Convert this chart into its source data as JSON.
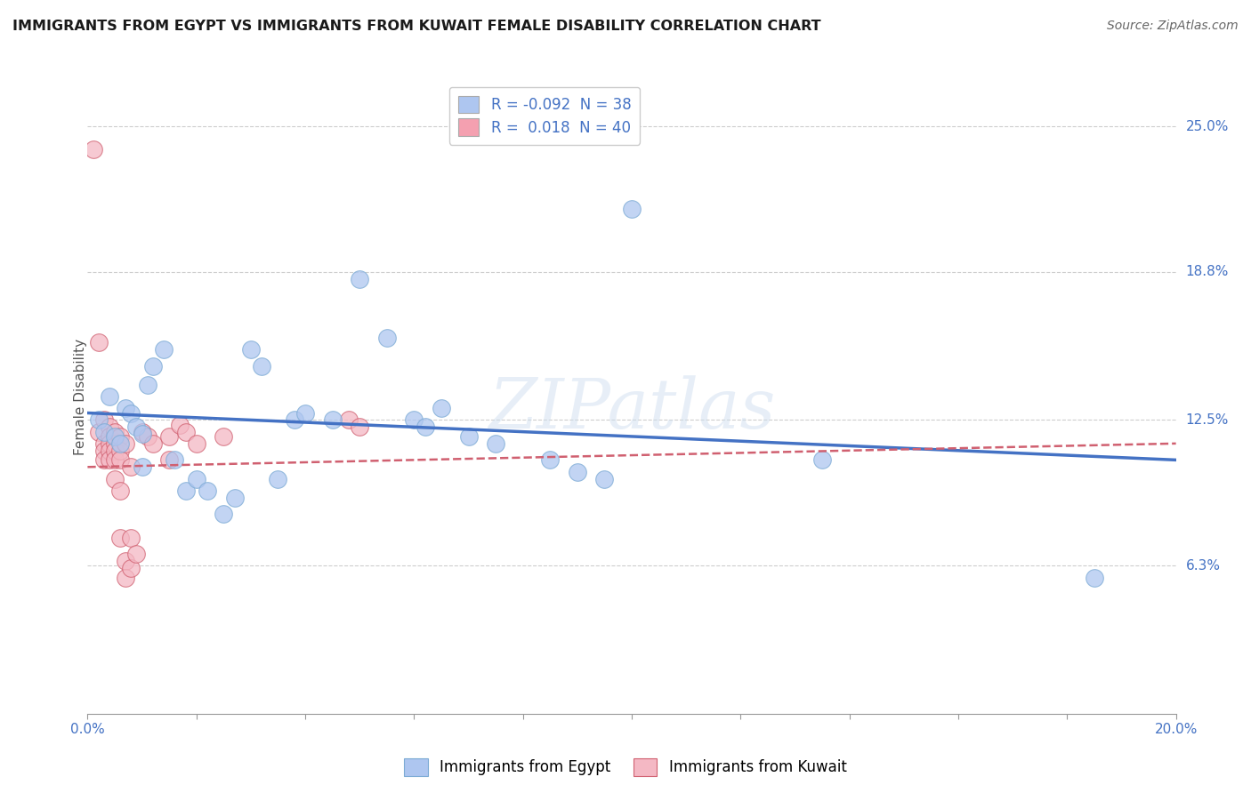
{
  "title": "IMMIGRANTS FROM EGYPT VS IMMIGRANTS FROM KUWAIT FEMALE DISABILITY CORRELATION CHART",
  "source": "Source: ZipAtlas.com",
  "ylabel": "Female Disability",
  "xlim": [
    0.0,
    0.2
  ],
  "ylim": [
    0.0,
    0.27
  ],
  "ytick_labels_right": [
    "25.0%",
    "18.8%",
    "12.5%",
    "6.3%"
  ],
  "ytick_positions_right": [
    0.25,
    0.188,
    0.125,
    0.063
  ],
  "grid_color": "#c8c8c8",
  "background_color": "#ffffff",
  "watermark": "ZIPatlas",
  "legend_entries": [
    {
      "label_r": "R = -0.092",
      "label_n": "N = 38",
      "color": "#aec6f0"
    },
    {
      "label_r": "R =  0.018",
      "label_n": "N = 40",
      "color": "#f4a0b0"
    }
  ],
  "egypt_scatter": {
    "color": "#aec6f0",
    "edge_color": "#7baad4",
    "points": [
      [
        0.002,
        0.125
      ],
      [
        0.003,
        0.12
      ],
      [
        0.004,
        0.135
      ],
      [
        0.005,
        0.118
      ],
      [
        0.006,
        0.115
      ],
      [
        0.007,
        0.13
      ],
      [
        0.008,
        0.128
      ],
      [
        0.009,
        0.122
      ],
      [
        0.01,
        0.119
      ],
      [
        0.01,
        0.105
      ],
      [
        0.011,
        0.14
      ],
      [
        0.012,
        0.148
      ],
      [
        0.014,
        0.155
      ],
      [
        0.016,
        0.108
      ],
      [
        0.018,
        0.095
      ],
      [
        0.02,
        0.1
      ],
      [
        0.022,
        0.095
      ],
      [
        0.025,
        0.085
      ],
      [
        0.027,
        0.092
      ],
      [
        0.03,
        0.155
      ],
      [
        0.032,
        0.148
      ],
      [
        0.035,
        0.1
      ],
      [
        0.038,
        0.125
      ],
      [
        0.04,
        0.128
      ],
      [
        0.045,
        0.125
      ],
      [
        0.05,
        0.185
      ],
      [
        0.055,
        0.16
      ],
      [
        0.06,
        0.125
      ],
      [
        0.062,
        0.122
      ],
      [
        0.065,
        0.13
      ],
      [
        0.07,
        0.118
      ],
      [
        0.075,
        0.115
      ],
      [
        0.085,
        0.108
      ],
      [
        0.09,
        0.103
      ],
      [
        0.095,
        0.1
      ],
      [
        0.1,
        0.215
      ],
      [
        0.135,
        0.108
      ],
      [
        0.185,
        0.058
      ]
    ]
  },
  "kuwait_scatter": {
    "color": "#f4b8c4",
    "edge_color": "#d06070",
    "points": [
      [
        0.001,
        0.24
      ],
      [
        0.002,
        0.158
      ],
      [
        0.002,
        0.12
      ],
      [
        0.003,
        0.125
      ],
      [
        0.003,
        0.115
      ],
      [
        0.003,
        0.112
      ],
      [
        0.003,
        0.108
      ],
      [
        0.004,
        0.122
      ],
      [
        0.004,
        0.118
      ],
      [
        0.004,
        0.115
      ],
      [
        0.004,
        0.112
      ],
      [
        0.004,
        0.108
      ],
      [
        0.005,
        0.12
      ],
      [
        0.005,
        0.115
      ],
      [
        0.005,
        0.112
      ],
      [
        0.005,
        0.108
      ],
      [
        0.005,
        0.1
      ],
      [
        0.006,
        0.118
      ],
      [
        0.006,
        0.112
      ],
      [
        0.006,
        0.108
      ],
      [
        0.006,
        0.095
      ],
      [
        0.006,
        0.075
      ],
      [
        0.007,
        0.115
      ],
      [
        0.007,
        0.065
      ],
      [
        0.007,
        0.058
      ],
      [
        0.008,
        0.105
      ],
      [
        0.008,
        0.075
      ],
      [
        0.008,
        0.062
      ],
      [
        0.009,
        0.068
      ],
      [
        0.01,
        0.12
      ],
      [
        0.011,
        0.118
      ],
      [
        0.012,
        0.115
      ],
      [
        0.015,
        0.118
      ],
      [
        0.015,
        0.108
      ],
      [
        0.017,
        0.123
      ],
      [
        0.018,
        0.12
      ],
      [
        0.02,
        0.115
      ],
      [
        0.025,
        0.118
      ],
      [
        0.048,
        0.125
      ],
      [
        0.05,
        0.122
      ]
    ]
  },
  "egypt_trend": {
    "color": "#4472c4",
    "x_start": 0.0,
    "x_end": 0.2,
    "y_start": 0.128,
    "y_end": 0.108,
    "linestyle": "solid",
    "linewidth": 2.5
  },
  "kuwait_trend": {
    "color": "#d06070",
    "x_start": 0.0,
    "x_end": 0.2,
    "y_start": 0.105,
    "y_end": 0.115,
    "linestyle": "dashed",
    "linewidth": 1.8
  },
  "bottom_legend": [
    {
      "label": "Immigrants from Egypt",
      "facecolor": "#aec6f0",
      "edgecolor": "#7baad4"
    },
    {
      "label": "Immigrants from Kuwait",
      "facecolor": "#f4b8c4",
      "edgecolor": "#d06070"
    }
  ]
}
